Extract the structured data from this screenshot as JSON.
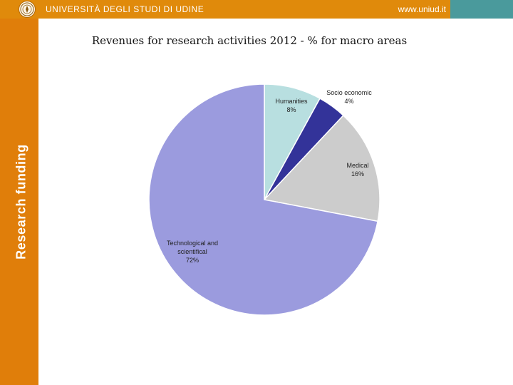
{
  "header": {
    "university": "UNIVERSITÀ DEGLI STUDI DI UDINE",
    "website": "www.uniud.it",
    "logo_icon": "university-seal-icon"
  },
  "sidebar": {
    "label": "Research funding"
  },
  "colors": {
    "header": "#e08a0b",
    "header_corner": "#4a9a9c",
    "sidebar": "#e07e0a"
  },
  "chart_data": {
    "type": "pie",
    "title": "Revenues for research activities 2012 - % for macro areas",
    "slices": [
      {
        "name": "Humanities",
        "value": 8,
        "label": "8%",
        "color": "#b8dfe0"
      },
      {
        "name": "Socio economic",
        "value": 4,
        "label": "4%",
        "color": "#333399"
      },
      {
        "name": "Medical",
        "value": 16,
        "label": "16%",
        "color": "#cccccc"
      },
      {
        "name": "Technological and scientifical",
        "value": 72,
        "label": "72%",
        "color": "#9b9bde"
      }
    ],
    "start": "12 o'clock",
    "direction": "clockwise"
  }
}
